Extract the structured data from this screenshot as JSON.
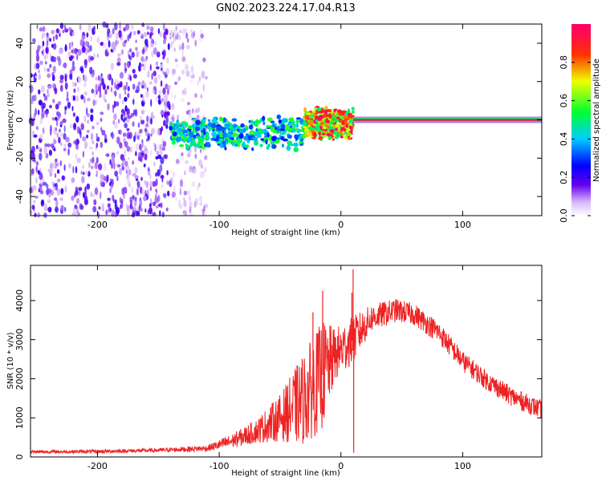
{
  "figure": {
    "title": "GN02.2023.224.17.04.R13"
  },
  "chart_data": [
    {
      "type": "heatmap",
      "name": "spectrogram",
      "xlabel": "Height of straight line (km)",
      "ylabel": "Frequency (Hz)",
      "xlim": [
        -255,
        165
      ],
      "ylim": [
        -50,
        50
      ],
      "x_ticks": [
        -200,
        -100,
        0,
        100
      ],
      "y_ticks": [
        -40,
        -20,
        0,
        20,
        40
      ],
      "colorbar": {
        "label": "Normalized spectral amplitude",
        "range": [
          0,
          1
        ],
        "ticks": [
          0.0,
          0.2,
          0.4,
          0.6,
          0.8
        ],
        "colormap": "white-purple-blue-cyan-green-yellow-red-magenta"
      },
      "regions": [
        {
          "x": [
            -255,
            -140
          ],
          "description_amplitude": 0.15,
          "freq_span": [
            -50,
            50
          ],
          "pattern": "scattered noise"
        },
        {
          "x": [
            -140,
            -110
          ],
          "description_amplitude": 0.08,
          "freq_span": [
            -50,
            50
          ],
          "pattern": "sparse noise"
        },
        {
          "x": [
            -140,
            -30
          ],
          "description_amplitude": 0.45,
          "freq_center": -7,
          "pattern": "band"
        },
        {
          "x": [
            -30,
            10
          ],
          "description_amplitude": 0.8,
          "freq_center": -2,
          "pattern": "band"
        },
        {
          "x": [
            10,
            165
          ],
          "description_amplitude": 0.95,
          "freq_center": 0,
          "pattern": "narrow line"
        }
      ]
    },
    {
      "type": "line",
      "name": "snr",
      "xlabel": "Height of straight line (km)",
      "ylabel": "SNR (10 * v/v)",
      "xlim": [
        -255,
        165
      ],
      "ylim": [
        0,
        4900
      ],
      "x_ticks": [
        -200,
        -100,
        0,
        100
      ],
      "y_ticks": [
        0,
        1000,
        2000,
        3000,
        4000
      ],
      "color": "#ee2222",
      "envelope": [
        {
          "x": -255,
          "mean": 130,
          "noise": 40
        },
        {
          "x": -200,
          "mean": 140,
          "noise": 45
        },
        {
          "x": -150,
          "mean": 170,
          "noise": 50
        },
        {
          "x": -110,
          "mean": 220,
          "noise": 80
        },
        {
          "x": -90,
          "mean": 400,
          "noise": 180
        },
        {
          "x": -70,
          "mean": 650,
          "noise": 300
        },
        {
          "x": -50,
          "mean": 1000,
          "noise": 600
        },
        {
          "x": -30,
          "mean": 1500,
          "noise": 1200
        },
        {
          "x": -15,
          "mean": 2100,
          "noise": 1400
        },
        {
          "x": -5,
          "mean": 2600,
          "noise": 700
        },
        {
          "x": 10,
          "mean": 3000,
          "noise": 600
        },
        {
          "x": 25,
          "mean": 3550,
          "noise": 350
        },
        {
          "x": 45,
          "mean": 3750,
          "noise": 300
        },
        {
          "x": 60,
          "mean": 3650,
          "noise": 280
        },
        {
          "x": 80,
          "mean": 3200,
          "noise": 280
        },
        {
          "x": 100,
          "mean": 2450,
          "noise": 260
        },
        {
          "x": 120,
          "mean": 1950,
          "noise": 250
        },
        {
          "x": 140,
          "mean": 1550,
          "noise": 250
        },
        {
          "x": 165,
          "mean": 1200,
          "noise": 240
        }
      ],
      "spikes": [
        {
          "x": 10,
          "value": 4800
        },
        {
          "x": 9,
          "value": 4200
        },
        {
          "x": 10.5,
          "value": 110
        },
        {
          "x": -15,
          "value": 4250
        },
        {
          "x": -23,
          "value": 3700
        }
      ]
    }
  ]
}
